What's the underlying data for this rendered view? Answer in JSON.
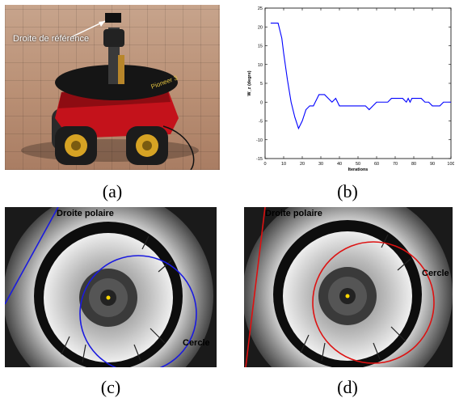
{
  "captions": {
    "a": "(a)",
    "b": "(b)",
    "c": "(c)",
    "d": "(d)"
  },
  "photo_a": {
    "reference_label": "Droite de référence",
    "robot_label": "Pioneer 3"
  },
  "image_c": {
    "line_label": "Droite polaire",
    "circle_label": "Cercle",
    "overlay_color": "#1a1adf"
  },
  "image_d": {
    "line_label": "Droite polaire",
    "circle_label": "Cercle",
    "overlay_color": "#dd1111"
  },
  "chart_data": {
    "type": "line",
    "xlabel": "Iterations",
    "ylabel": "W_z (degre)",
    "xlim": [
      0,
      100
    ],
    "ylim": [
      -15,
      25
    ],
    "xticks": [
      0,
      10,
      20,
      30,
      40,
      50,
      60,
      70,
      80,
      90,
      100
    ],
    "yticks": [
      -15,
      -10,
      -5,
      0,
      5,
      10,
      15,
      20,
      25
    ],
    "grid": false,
    "series": [
      {
        "color": "#0000ff",
        "x": [
          3,
          7,
          8,
          9,
          10,
          12,
          14,
          16,
          18,
          20,
          22,
          24,
          26,
          28,
          29,
          30,
          32,
          34,
          36,
          38,
          40,
          42,
          44,
          46,
          48,
          50,
          52,
          54,
          56,
          58,
          60,
          62,
          64,
          66,
          68,
          70,
          72,
          74,
          76,
          77,
          78,
          79,
          80,
          82,
          84,
          86,
          88,
          90,
          92,
          94,
          96,
          98,
          100
        ],
        "y": [
          21,
          21,
          19,
          17,
          13,
          6,
          0,
          -4,
          -7,
          -5,
          -2,
          -1,
          -1,
          1,
          2,
          2,
          2,
          1,
          0,
          1,
          -1,
          -1,
          -1,
          -1,
          -1,
          -1,
          -1,
          -1,
          -2,
          -1,
          0,
          0,
          0,
          0,
          1,
          1,
          1,
          1,
          0,
          1,
          0,
          1,
          1,
          1,
          1,
          0,
          0,
          -1,
          -1,
          -1,
          0,
          0,
          0
        ]
      }
    ]
  }
}
